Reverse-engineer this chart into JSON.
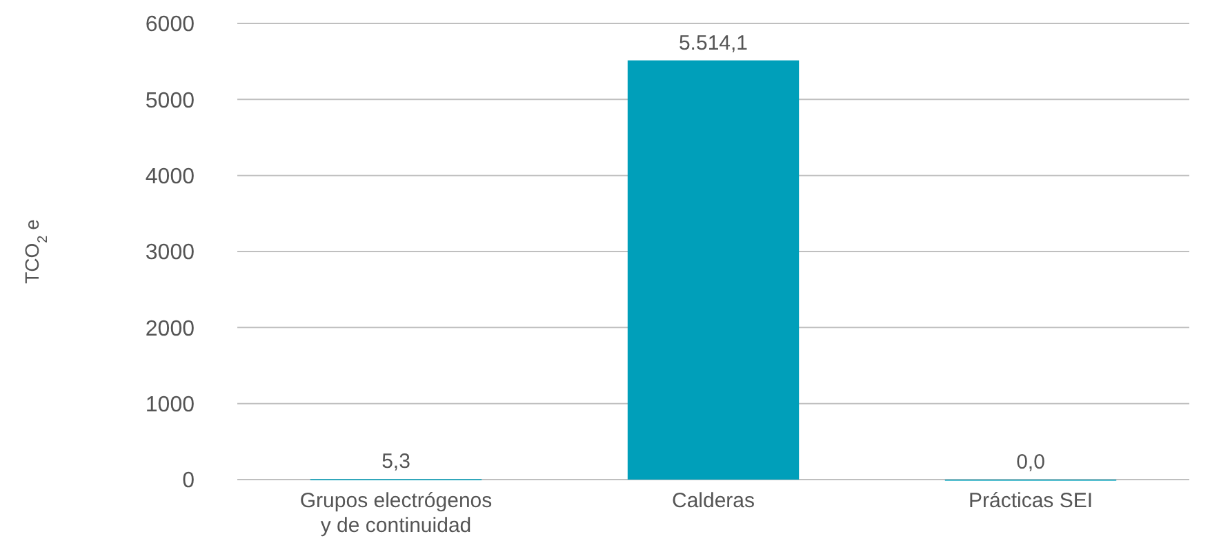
{
  "chart_data": {
    "type": "bar",
    "ylabel": "TCO$_{2}$ e",
    "categories": [
      "Grupos electrógenos y de continuidad",
      "Calderas",
      "Prácticas SEI"
    ],
    "values": [
      5.3,
      5514.1,
      0.0
    ],
    "value_labels": [
      "5,3",
      "5.514,1",
      "0,0"
    ],
    "color": "#009fba",
    "ylim": [
      0,
      6000
    ],
    "yticks": [
      0,
      1000,
      2000,
      3000,
      4000,
      5000,
      6000
    ],
    "grid": "y"
  }
}
